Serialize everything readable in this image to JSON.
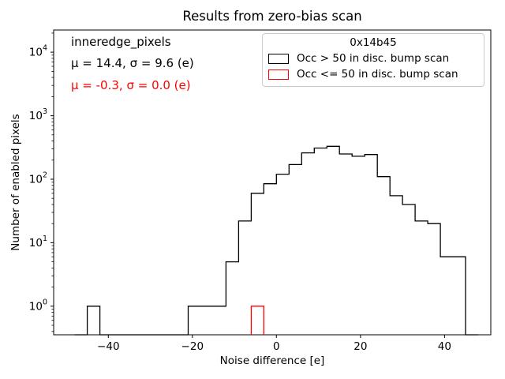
{
  "title": "Results from zero-bias scan",
  "colors": {
    "black": "#000000",
    "red": "#ff0000"
  },
  "axes": {
    "xlabel": "Noise difference [e]",
    "ylabel": "Number of enabled pixels",
    "xticks": [
      {
        "value": -40,
        "label": "−40"
      },
      {
        "value": -20,
        "label": "−20"
      },
      {
        "value": 0,
        "label": "0"
      },
      {
        "value": 20,
        "label": "20"
      },
      {
        "value": 40,
        "label": "40"
      }
    ],
    "ytick_exponents": [
      0,
      1,
      2,
      3,
      4
    ]
  },
  "annotations": {
    "dataset": "inneredge_pixels",
    "black_stats": "μ = 14.4, σ = 9.6 (e)",
    "red_stats": "μ = -0.3, σ = 0.0 (e)"
  },
  "legend": {
    "title": "0x14b45",
    "entries": [
      {
        "label": "Occ > 50 in disc. bump scan",
        "color": "#000000"
      },
      {
        "label": "Occ <= 50 in disc. bump scan",
        "color": "#ff0000"
      }
    ]
  },
  "chart_data": {
    "type": "bar",
    "subtype": "step-histogram",
    "yscale": "log",
    "title": "Results from zero-bias scan",
    "xlabel": "Noise difference [e]",
    "ylabel": "Number of enabled pixels",
    "xlim": [
      -53,
      51
    ],
    "ylim_log10": [
      -0.45,
      4.35
    ],
    "grid": false,
    "legend_position": "upper right",
    "series": [
      {
        "name": "Occ > 50 in disc. bump scan",
        "color": "#000000",
        "bin_edges": [
          -48,
          -45,
          -42,
          -39,
          -36,
          -33,
          -30,
          -27,
          -24,
          -21,
          -18,
          -15,
          -12,
          -9,
          -6,
          -3,
          0,
          3,
          6,
          9,
          12,
          15,
          18,
          21,
          24,
          27,
          30,
          33,
          36,
          39,
          42,
          45,
          48
        ],
        "counts": [
          0,
          1,
          0,
          0,
          0,
          0,
          0,
          0,
          0,
          1,
          1,
          1,
          5,
          22,
          60,
          85,
          120,
          170,
          260,
          310,
          330,
          250,
          230,
          245,
          110,
          55,
          40,
          22,
          20,
          6,
          6,
          0
        ]
      },
      {
        "name": "Occ <= 50 in disc. bump scan",
        "color": "#ff0000",
        "bin_edges": [
          -6,
          -3
        ],
        "counts": [
          1
        ]
      }
    ]
  }
}
